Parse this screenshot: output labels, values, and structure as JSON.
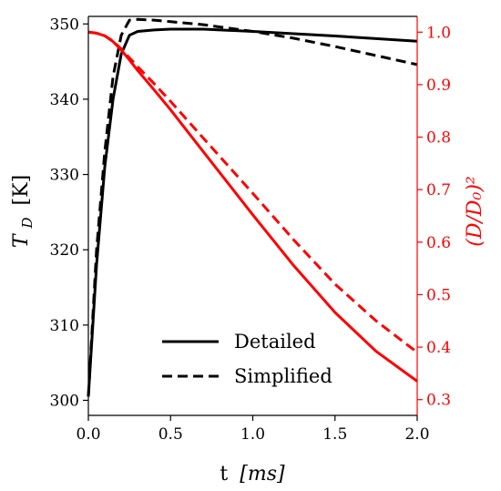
{
  "chart_data": {
    "type": "line",
    "x": {
      "label_main": "t",
      "label_unit": "[ms]",
      "lim": [
        0.0,
        2.0
      ],
      "ticks": [
        0.0,
        0.5,
        1.0,
        1.5,
        2.0
      ],
      "tick_labels": [
        "0.0",
        "0.5",
        "1.0",
        "1.5",
        "2.0"
      ]
    },
    "y_left": {
      "label_main": "T",
      "label_sub": "D",
      "label_unit": "[K]",
      "lim": [
        298,
        351
      ],
      "ticks": [
        300,
        310,
        320,
        330,
        340,
        350
      ],
      "tick_labels": [
        "300",
        "310",
        "320",
        "330",
        "340",
        "350"
      ],
      "color": "#000000"
    },
    "y_right": {
      "label": "(D/D₀)²",
      "lim": [
        0.27,
        1.03
      ],
      "ticks": [
        0.3,
        0.4,
        0.5,
        0.6,
        0.7,
        0.8,
        0.9,
        1.0
      ],
      "tick_labels": [
        "0.3",
        "0.4",
        "0.5",
        "0.6",
        "0.7",
        "0.8",
        "0.9",
        "1.0"
      ],
      "color": "#ff0000"
    },
    "legend": {
      "placement": "lower-center",
      "entries": [
        {
          "label": "Detailed",
          "style": "solid"
        },
        {
          "label": "Simplified",
          "style": "dashed"
        }
      ]
    },
    "series": [
      {
        "axis": "left",
        "style": "solid",
        "color": "#000000",
        "x": [
          0.0,
          0.05,
          0.1,
          0.15,
          0.2,
          0.25,
          0.3,
          0.4,
          0.5,
          0.7,
          1.0,
          1.5,
          2.0
        ],
        "y": [
          300.5,
          318,
          331,
          340,
          346,
          348.5,
          349,
          349.2,
          349.3,
          349.3,
          349.0,
          348.4,
          347.7
        ]
      },
      {
        "axis": "left",
        "style": "dashed",
        "color": "#000000",
        "x": [
          0.0,
          0.05,
          0.1,
          0.15,
          0.2,
          0.25,
          0.3,
          0.4,
          0.5,
          0.7,
          1.0,
          1.25,
          1.5,
          1.75,
          2.0
        ],
        "y": [
          300.5,
          320,
          333,
          343,
          348.5,
          350.5,
          350.6,
          350.5,
          350.3,
          349.9,
          349.0,
          348.1,
          347.0,
          345.8,
          344.6
        ]
      },
      {
        "axis": "right",
        "style": "solid",
        "color": "#ff0000",
        "x": [
          0.0,
          0.05,
          0.1,
          0.15,
          0.2,
          0.25,
          0.3,
          0.4,
          0.5,
          0.7,
          1.0,
          1.25,
          1.5,
          1.75,
          2.0
        ],
        "y": [
          1.0,
          0.998,
          0.993,
          0.982,
          0.966,
          0.947,
          0.927,
          0.89,
          0.852,
          0.772,
          0.652,
          0.555,
          0.466,
          0.392,
          0.335
        ]
      },
      {
        "axis": "right",
        "style": "dashed",
        "color": "#ff0000",
        "x": [
          0.0,
          0.05,
          0.1,
          0.15,
          0.2,
          0.25,
          0.3,
          0.4,
          0.5,
          0.7,
          1.0,
          1.25,
          1.5,
          1.75,
          2.0
        ],
        "y": [
          1.0,
          0.998,
          0.993,
          0.983,
          0.968,
          0.951,
          0.934,
          0.902,
          0.868,
          0.798,
          0.693,
          0.604,
          0.52,
          0.45,
          0.39
        ]
      }
    ]
  }
}
